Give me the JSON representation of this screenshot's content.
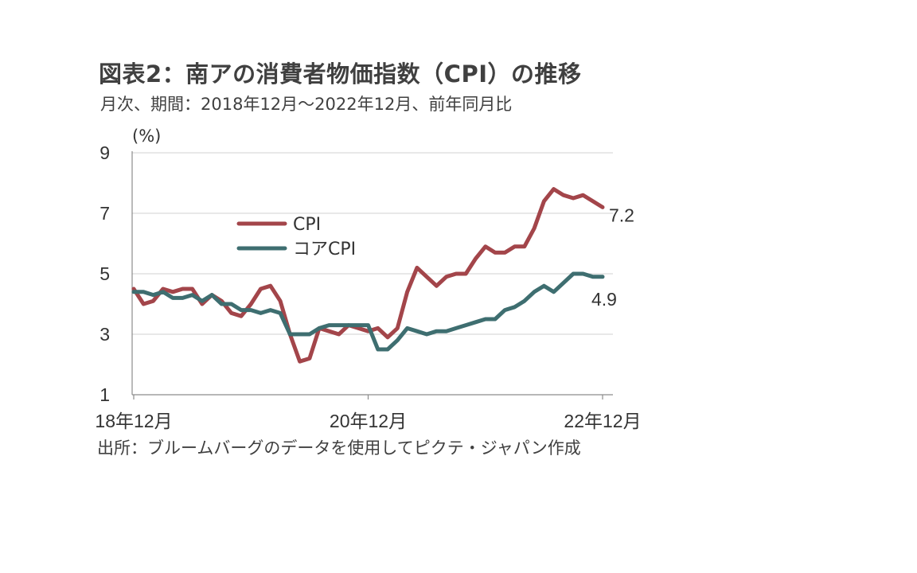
{
  "title": "図表2：南アの消費者物価指数（CPI）の推移",
  "subtitle": "月次、期間：2018年12月～2022年12月、前年同月比",
  "source": "出所：ブルームバーグのデータを使用してピクテ・ジャパン作成",
  "chart_data": {
    "type": "line",
    "title": "図表2：南アの消費者物価指数（CPI）の推移",
    "subtitle": "月次、期間：2018年12月～2022年12月、前年同月比",
    "ylabel": "(%)",
    "xlabel": "",
    "ylim": [
      1,
      9
    ],
    "yticks": [
      1,
      3,
      5,
      7,
      9
    ],
    "x_range": [
      "2018-12",
      "2022-12"
    ],
    "x_tick_labels": [
      "18年12月",
      "20年12月",
      "22年12月"
    ],
    "x_tick_positions": [
      "2018-12",
      "2020-12",
      "2022-12"
    ],
    "grid": true,
    "legend_position": "upper-left-inside",
    "x": [
      "2018-12",
      "2019-01",
      "2019-02",
      "2019-03",
      "2019-04",
      "2019-05",
      "2019-06",
      "2019-07",
      "2019-08",
      "2019-09",
      "2019-10",
      "2019-11",
      "2019-12",
      "2020-01",
      "2020-02",
      "2020-03",
      "2020-04",
      "2020-05",
      "2020-06",
      "2020-07",
      "2020-08",
      "2020-09",
      "2020-10",
      "2020-11",
      "2020-12",
      "2021-01",
      "2021-02",
      "2021-03",
      "2021-04",
      "2021-05",
      "2021-06",
      "2021-07",
      "2021-08",
      "2021-09",
      "2021-10",
      "2021-11",
      "2021-12",
      "2022-01",
      "2022-02",
      "2022-03",
      "2022-04",
      "2022-05",
      "2022-06",
      "2022-07",
      "2022-08",
      "2022-09",
      "2022-10",
      "2022-11",
      "2022-12"
    ],
    "series": [
      {
        "name": "CPI",
        "color": "#a3454a",
        "values": [
          4.5,
          4.0,
          4.1,
          4.5,
          4.4,
          4.5,
          4.5,
          4.0,
          4.3,
          4.1,
          3.7,
          3.6,
          4.0,
          4.5,
          4.6,
          4.1,
          3.0,
          2.1,
          2.2,
          3.2,
          3.1,
          3.0,
          3.3,
          3.2,
          3.1,
          3.2,
          2.9,
          3.2,
          4.4,
          5.2,
          4.9,
          4.6,
          4.9,
          5.0,
          5.0,
          5.5,
          5.9,
          5.7,
          5.7,
          5.9,
          5.9,
          6.5,
          7.4,
          7.8,
          7.6,
          7.5,
          7.6,
          7.4,
          7.2
        ],
        "end_label": "7.2"
      },
      {
        "name": "コアCPI",
        "color": "#3e6e70",
        "values": [
          4.4,
          4.4,
          4.3,
          4.4,
          4.2,
          4.2,
          4.3,
          4.1,
          4.3,
          4.0,
          4.0,
          3.8,
          3.8,
          3.7,
          3.8,
          3.7,
          3.0,
          3.0,
          3.0,
          3.2,
          3.3,
          3.3,
          3.3,
          3.3,
          3.3,
          2.5,
          2.5,
          2.8,
          3.2,
          3.1,
          3.0,
          3.1,
          3.1,
          3.2,
          3.3,
          3.4,
          3.5,
          3.5,
          3.8,
          3.9,
          4.1,
          4.4,
          4.6,
          4.4,
          4.7,
          5.0,
          5.0,
          4.9,
          4.9
        ],
        "end_label": "4.9"
      }
    ]
  }
}
